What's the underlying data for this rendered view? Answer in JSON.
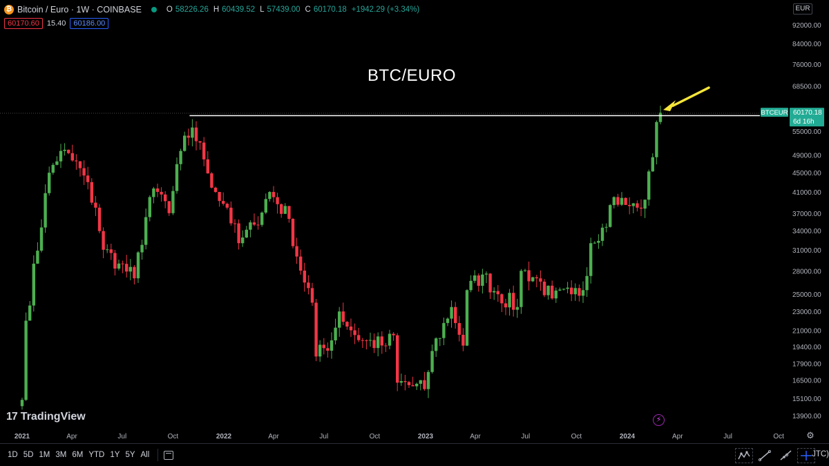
{
  "header": {
    "symbol_title": "Bitcoin / Euro · 1W · COINBASE",
    "btc_logo_glyph": "₿",
    "ohlc": {
      "open_label": "O",
      "open": "58226.26",
      "high_label": "H",
      "high": "60439.52",
      "low_label": "L",
      "low": "57439.00",
      "close_label": "C",
      "close": "60170.18",
      "change": "+1942.29 (+3.34%)"
    },
    "sell_price": "60170.60",
    "spread": "15.40",
    "buy_price": "60186.00",
    "currency": "EUR"
  },
  "overlay_title": "BTC/EURO",
  "price_tag": {
    "symbol": "BTCEUR",
    "price": "60170.18",
    "countdown": "6d 16h"
  },
  "watermark": "TradingView",
  "colors": {
    "up": "#4caf50",
    "down": "#f23645",
    "arrow": "#f5e63a",
    "resistance_line": "#ffffff",
    "tag_bg": "#22ab94"
  },
  "chart_data": {
    "type": "candlestick",
    "title": "BTC/EURO",
    "interval": "1W",
    "y_scale": "log",
    "ylim": [
      13000,
      98000
    ],
    "y_ticks": [
      "92000.00",
      "84000.00",
      "76000.00",
      "68500.00",
      "55000.00",
      "49000.00",
      "45000.00",
      "41000.00",
      "37000.00",
      "34000.00",
      "31000.00",
      "28000.00",
      "25000.00",
      "23000.00",
      "21000.00",
      "19400.00",
      "17900.00",
      "16500.00",
      "15100.00",
      "13900.00"
    ],
    "x_tick_labels": [
      "2021",
      "Apr",
      "Jul",
      "Oct",
      "2022",
      "Apr",
      "Jul",
      "Oct",
      "2023",
      "Apr",
      "Jul",
      "Oct",
      "2024",
      "Apr",
      "Jul",
      "Oct"
    ],
    "resistance_level": 59300,
    "anchors": [
      [
        "2021-01-01",
        15000
      ],
      [
        "2021-01-08",
        22000
      ],
      [
        "2021-02-19",
        45000
      ],
      [
        "2021-03-12",
        50000
      ],
      [
        "2021-04-16",
        46000
      ],
      [
        "2021-05-14",
        38000
      ],
      [
        "2021-05-28",
        31000
      ],
      [
        "2021-06-25",
        29000
      ],
      [
        "2021-07-23",
        27000
      ],
      [
        "2021-08-20",
        40000
      ],
      [
        "2021-09-10",
        40500
      ],
      [
        "2021-09-24",
        37000
      ],
      [
        "2021-10-15",
        50000
      ],
      [
        "2021-11-05",
        56000
      ],
      [
        "2021-11-26",
        48000
      ],
      [
        "2021-12-17",
        41000
      ],
      [
        "2022-01-07",
        38000
      ],
      [
        "2022-01-28",
        32000
      ],
      [
        "2022-02-25",
        35000
      ],
      [
        "2022-03-25",
        41000
      ],
      [
        "2022-04-29",
        36000
      ],
      [
        "2022-05-13",
        30000
      ],
      [
        "2022-06-10",
        24000
      ],
      [
        "2022-06-17",
        18500
      ],
      [
        "2022-07-15",
        20000
      ],
      [
        "2022-07-29",
        23000
      ],
      [
        "2022-08-19",
        21000
      ],
      [
        "2022-09-09",
        20000
      ],
      [
        "2022-10-21",
        19500
      ],
      [
        "2022-11-04",
        20500
      ],
      [
        "2022-11-11",
        16300
      ],
      [
        "2022-12-30",
        15800
      ],
      [
        "2023-01-13",
        19000
      ],
      [
        "2023-02-17",
        23500
      ],
      [
        "2023-03-10",
        19500
      ],
      [
        "2023-03-17",
        25500
      ],
      [
        "2023-04-14",
        27500
      ],
      [
        "2023-05-12",
        25000
      ],
      [
        "2023-06-16",
        23500
      ],
      [
        "2023-06-23",
        28000
      ],
      [
        "2023-07-21",
        27000
      ],
      [
        "2023-08-18",
        24500
      ],
      [
        "2023-09-22",
        25000
      ],
      [
        "2023-10-13",
        25500
      ],
      [
        "2023-10-27",
        32000
      ],
      [
        "2023-11-17",
        34500
      ],
      [
        "2023-12-08",
        40000
      ],
      [
        "2023-12-29",
        38500
      ],
      [
        "2024-01-19",
        38000
      ],
      [
        "2024-02-02",
        39500
      ],
      [
        "2024-02-16",
        48500
      ],
      [
        "2024-02-23",
        57500
      ],
      [
        "2024-03-01",
        60170
      ]
    ],
    "current_price": 60170.18
  }
}
